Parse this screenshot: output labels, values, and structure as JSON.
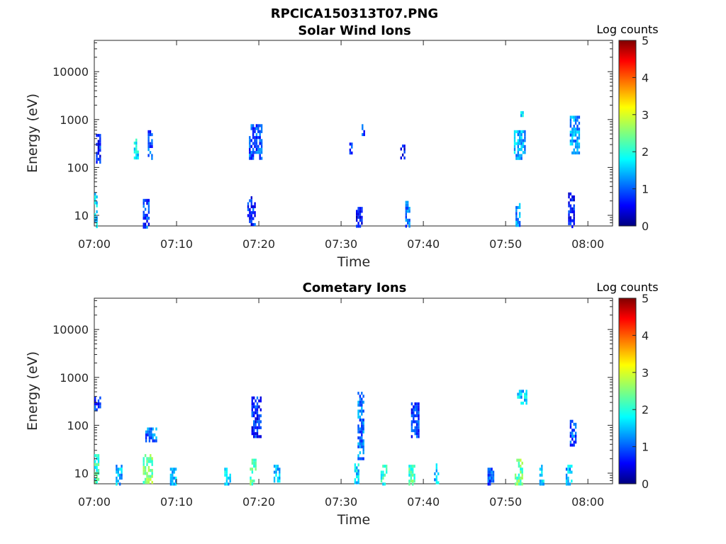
{
  "figure_title": "RPCICA150313T07.PNG",
  "chart_data": [
    {
      "type": "heatmap",
      "title": "Solar Wind Ions",
      "xlabel": "Time",
      "ylabel": "Energy (eV)",
      "y_scale": "log",
      "ylim": [
        6,
        45000
      ],
      "xlim": [
        "07:00",
        "08:03"
      ],
      "x_ticks": [
        "07:00",
        "07:10",
        "07:20",
        "07:30",
        "07:40",
        "07:50",
        "08:00"
      ],
      "y_ticks": [
        "10",
        "100",
        "1000",
        "10000"
      ],
      "colorbar": {
        "label": "Log counts",
        "range": [
          0,
          5
        ],
        "ticks": [
          "0",
          "1",
          "2",
          "3",
          "4",
          "5"
        ],
        "colormap": "jet"
      },
      "bursts": [
        {
          "t": 0.0,
          "e_low": 6,
          "e_high": 30,
          "level": 1.6,
          "dur": 0.3
        },
        {
          "t": 0.2,
          "e_low": 120,
          "e_high": 500,
          "level": 0.8,
          "dur": 0.6
        },
        {
          "t": 4.8,
          "e_low": 150,
          "e_high": 400,
          "level": 1.8,
          "dur": 0.6
        },
        {
          "t": 5.9,
          "e_low": 6,
          "e_high": 22,
          "level": 0.9,
          "dur": 0.8
        },
        {
          "t": 6.5,
          "e_low": 160,
          "e_high": 600,
          "level": 1.0,
          "dur": 0.5
        },
        {
          "t": 18.6,
          "e_low": 6,
          "e_high": 25,
          "level": 0.8,
          "dur": 0.9
        },
        {
          "t": 18.8,
          "e_low": 150,
          "e_high": 800,
          "level": 1.0,
          "dur": 1.6
        },
        {
          "t": 31.0,
          "e_low": 200,
          "e_high": 330,
          "level": 1.1,
          "dur": 0.3
        },
        {
          "t": 31.8,
          "e_low": 6,
          "e_high": 15,
          "level": 0.6,
          "dur": 0.8
        },
        {
          "t": 32.5,
          "e_low": 500,
          "e_high": 800,
          "level": 0.9,
          "dur": 0.4
        },
        {
          "t": 37.8,
          "e_low": 6,
          "e_high": 20,
          "level": 1.1,
          "dur": 0.6
        },
        {
          "t": 37.2,
          "e_low": 160,
          "e_high": 300,
          "level": 0.6,
          "dur": 0.5
        },
        {
          "t": 51.2,
          "e_low": 6,
          "e_high": 18,
          "level": 1.3,
          "dur": 0.6
        },
        {
          "t": 51.0,
          "e_low": 150,
          "e_high": 600,
          "level": 1.5,
          "dur": 1.4
        },
        {
          "t": 51.8,
          "e_low": 1000,
          "e_high": 1500,
          "level": 1.8,
          "dur": 0.3
        },
        {
          "t": 57.6,
          "e_low": 6,
          "e_high": 30,
          "level": 0.7,
          "dur": 0.7
        },
        {
          "t": 57.8,
          "e_low": 200,
          "e_high": 1200,
          "level": 1.4,
          "dur": 1.2
        }
      ]
    },
    {
      "type": "heatmap",
      "title": "Cometary Ions",
      "xlabel": "Time",
      "ylabel": "Energy (eV)",
      "y_scale": "log",
      "ylim": [
        6,
        45000
      ],
      "xlim": [
        "07:00",
        "08:03"
      ],
      "x_ticks": [
        "07:00",
        "07:10",
        "07:20",
        "07:30",
        "07:40",
        "07:50",
        "08:00"
      ],
      "y_ticks": [
        "10",
        "100",
        "1000",
        "10000"
      ],
      "colorbar": {
        "label": "Log counts",
        "range": [
          0,
          5
        ],
        "ticks": [
          "0",
          "1",
          "2",
          "3",
          "4",
          "5"
        ],
        "colormap": "jet"
      },
      "bursts": [
        {
          "t": 0.0,
          "e_low": 6,
          "e_high": 25,
          "level": 2.1,
          "dur": 0.6
        },
        {
          "t": 0.0,
          "e_low": 200,
          "e_high": 400,
          "level": 0.8,
          "dur": 0.7
        },
        {
          "t": 2.6,
          "e_low": 6,
          "e_high": 15,
          "level": 1.5,
          "dur": 0.8
        },
        {
          "t": 5.9,
          "e_low": 6,
          "e_high": 25,
          "level": 2.5,
          "dur": 1.2
        },
        {
          "t": 6.2,
          "e_low": 50,
          "e_high": 90,
          "level": 1.2,
          "dur": 1.5
        },
        {
          "t": 9.2,
          "e_low": 6,
          "e_high": 15,
          "level": 1.6,
          "dur": 0.8
        },
        {
          "t": 15.8,
          "e_low": 6,
          "e_high": 13,
          "level": 1.6,
          "dur": 0.8
        },
        {
          "t": 18.9,
          "e_low": 6,
          "e_high": 20,
          "level": 2.2,
          "dur": 0.8
        },
        {
          "t": 19.1,
          "e_low": 60,
          "e_high": 400,
          "level": 0.8,
          "dur": 1.2
        },
        {
          "t": 21.8,
          "e_low": 6,
          "e_high": 15,
          "level": 1.6,
          "dur": 0.8
        },
        {
          "t": 31.6,
          "e_low": 6,
          "e_high": 16,
          "level": 1.7,
          "dur": 0.6
        },
        {
          "t": 32.0,
          "e_low": 20,
          "e_high": 500,
          "level": 1.2,
          "dur": 0.8
        },
        {
          "t": 34.8,
          "e_low": 6,
          "e_high": 15,
          "level": 2.0,
          "dur": 0.8
        },
        {
          "t": 38.2,
          "e_low": 6,
          "e_high": 15,
          "level": 2.2,
          "dur": 0.8
        },
        {
          "t": 38.5,
          "e_low": 60,
          "e_high": 300,
          "level": 0.9,
          "dur": 1.0
        },
        {
          "t": 41.3,
          "e_low": 6,
          "e_high": 16,
          "level": 1.5,
          "dur": 0.6
        },
        {
          "t": 47.8,
          "e_low": 6,
          "e_high": 13,
          "level": 1.0,
          "dur": 0.8
        },
        {
          "t": 51.1,
          "e_low": 6,
          "e_high": 20,
          "level": 2.4,
          "dur": 0.9
        },
        {
          "t": 51.4,
          "e_low": 300,
          "e_high": 550,
          "level": 1.6,
          "dur": 1.2
        },
        {
          "t": 54.1,
          "e_low": 6,
          "e_high": 15,
          "level": 1.6,
          "dur": 0.6
        },
        {
          "t": 57.3,
          "e_low": 6,
          "e_high": 15,
          "level": 1.5,
          "dur": 0.8
        },
        {
          "t": 57.8,
          "e_low": 40,
          "e_high": 150,
          "level": 1.0,
          "dur": 0.8
        }
      ]
    }
  ]
}
